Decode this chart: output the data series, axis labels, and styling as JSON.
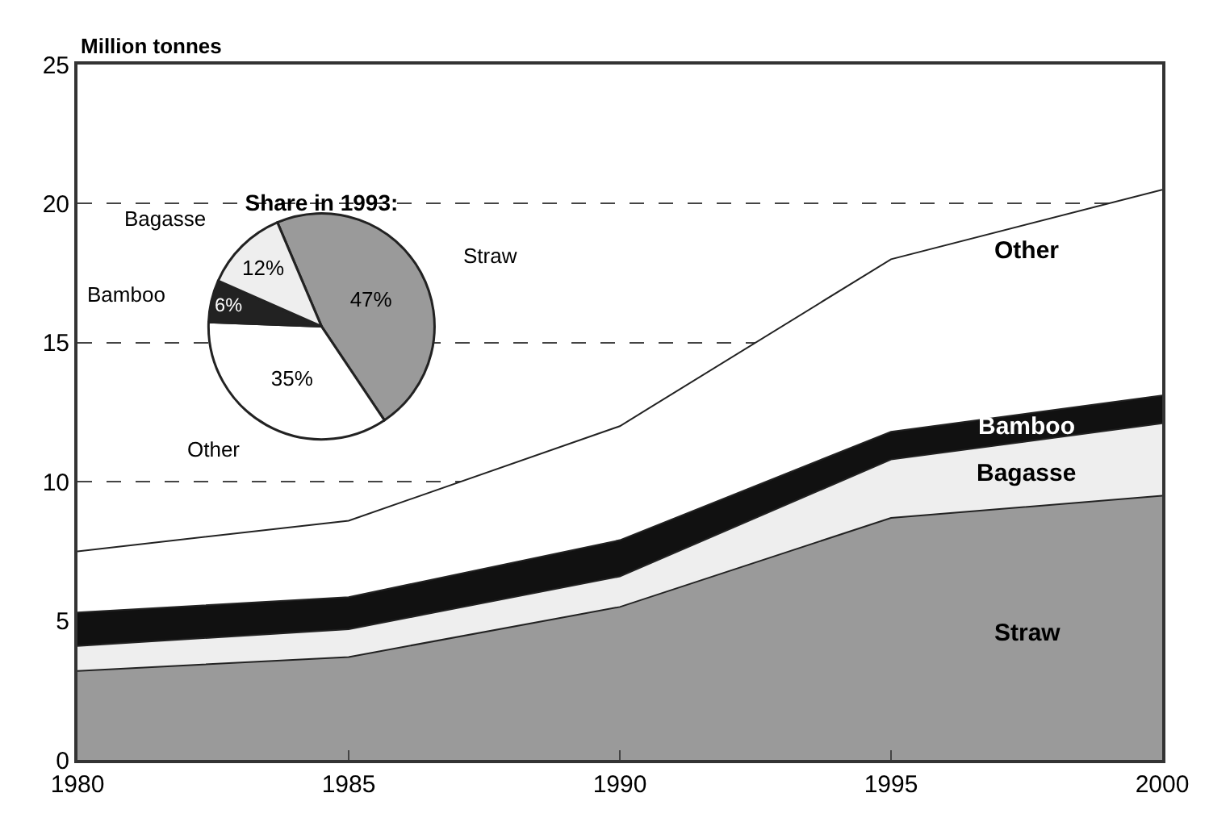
{
  "chart_data": [
    {
      "type": "area",
      "stacked": true,
      "ylabel": "Million tonnes",
      "x": [
        1980,
        1985,
        1990,
        1995,
        2000
      ],
      "series": [
        {
          "name": "Straw",
          "color": "#9a9a9a",
          "values": [
            3.2,
            3.7,
            5.5,
            8.7,
            9.5
          ]
        },
        {
          "name": "Bagasse",
          "color": "#eeeeee",
          "values": [
            0.9,
            1.0,
            1.1,
            2.1,
            2.6
          ]
        },
        {
          "name": "Bamboo",
          "color": "#111111",
          "values": [
            1.2,
            1.15,
            1.3,
            1.0,
            1.0
          ]
        },
        {
          "name": "Other",
          "color": "#ffffff",
          "values": [
            2.2,
            2.75,
            4.1,
            6.2,
            7.4
          ]
        }
      ],
      "xlim": [
        1980,
        2000
      ],
      "xticks": [
        1980,
        1985,
        1990,
        1995,
        2000
      ],
      "ylim": [
        0,
        25
      ],
      "yticks": [
        0,
        5,
        10,
        15,
        20,
        25
      ],
      "grid": "y",
      "line_style": "dashed",
      "legend": false
    },
    {
      "type": "pie",
      "title": "Share in 1993:",
      "categories": [
        "Straw",
        "Other",
        "Bamboo",
        "Bagasse"
      ],
      "values": [
        47,
        35,
        6,
        12
      ],
      "colors": [
        "#9a9a9a",
        "#ffffff",
        "#222222",
        "#eeeeee"
      ],
      "value_labels": [
        "47%",
        "35%",
        "6%",
        "12%"
      ],
      "legend": false
    }
  ]
}
